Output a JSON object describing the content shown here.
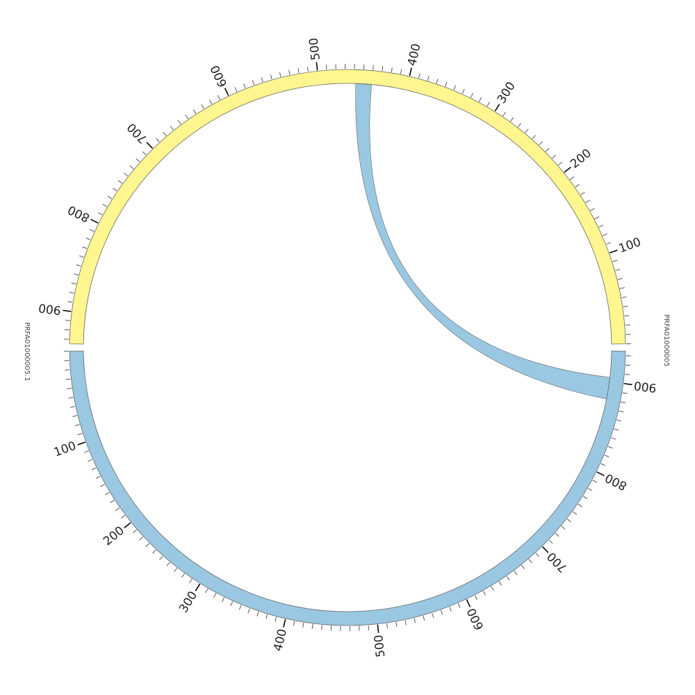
{
  "chart_data": {
    "type": "chord",
    "sequences": [
      {
        "id": "seq-right",
        "name": "PRFA01000005",
        "length": 935,
        "color": "#9ac8e2",
        "tick_labels": [
          "100",
          "200",
          "300",
          "400",
          "500",
          "600",
          "700",
          "800",
          "900"
        ]
      },
      {
        "id": "seq-left",
        "name": "PRFA01000005.1",
        "length": 935,
        "color": "#fff68f",
        "tick_labels": [
          "100",
          "200",
          "300",
          "400",
          "500",
          "600",
          "700",
          "800",
          "900"
        ]
      }
    ],
    "links": [
      {
        "from": "seq-right",
        "from_range": [
          880,
          905
        ],
        "to": "seq-left",
        "to_range": [
          440,
          458
        ],
        "color": "#9ac8e2"
      }
    ],
    "minor_tick_interval": 10,
    "major_tick_interval": 100
  },
  "colors": {
    "outline": "#666666",
    "tick": "#555555",
    "major_tick": "#000000"
  }
}
